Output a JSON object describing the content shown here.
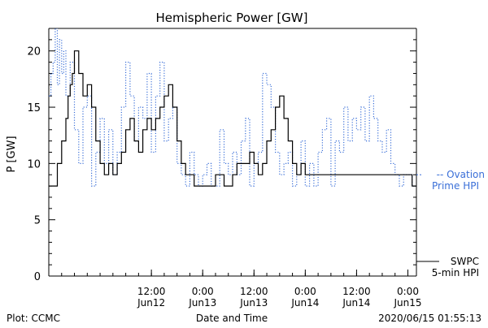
{
  "chart_data": {
    "type": "line",
    "title": "Hemispheric Power [GW]",
    "xlabel": "Date and Time",
    "ylabel": "P [GW]",
    "ylim": [
      0,
      22
    ],
    "yticks": [
      0,
      5,
      10,
      15,
      20
    ],
    "xlim": [
      "2020-06-11T12:00",
      "2020-06-15T02:00"
    ],
    "xticks": [
      {
        "time": "2020-06-12T12:00",
        "label": [
          "12:00",
          "Jun12"
        ]
      },
      {
        "time": "2020-06-13T00:00",
        "label": [
          "0:00",
          "Jun13"
        ]
      },
      {
        "time": "2020-06-13T12:00",
        "label": [
          "12:00",
          "Jun13"
        ]
      },
      {
        "time": "2020-06-14T00:00",
        "label": [
          "0:00",
          "Jun14"
        ]
      },
      {
        "time": "2020-06-14T12:00",
        "label": [
          "12:00",
          "Jun14"
        ]
      },
      {
        "time": "2020-06-15T00:00",
        "label": [
          "0:00",
          "Jun15"
        ]
      }
    ],
    "grid": false,
    "legend_position": "right",
    "series": [
      {
        "name": "SWPC 5-min HPI",
        "legend_label": [
          "SWPC",
          "5-min HPI"
        ],
        "color": "#000000",
        "style": "solid",
        "step": true,
        "x": [
          "2020-06-11T12:00",
          "2020-06-11T13:30",
          "2020-06-11T14:00",
          "2020-06-11T15:00",
          "2020-06-11T16:00",
          "2020-06-11T16:30",
          "2020-06-11T17:00",
          "2020-06-11T17:30",
          "2020-06-11T18:00",
          "2020-06-11T19:00",
          "2020-06-11T20:00",
          "2020-06-11T21:00",
          "2020-06-11T22:00",
          "2020-06-11T23:00",
          "2020-06-12T00:00",
          "2020-06-12T01:00",
          "2020-06-12T02:00",
          "2020-06-12T03:00",
          "2020-06-12T04:00",
          "2020-06-12T05:00",
          "2020-06-12T06:00",
          "2020-06-12T07:00",
          "2020-06-12T08:00",
          "2020-06-12T09:00",
          "2020-06-12T10:00",
          "2020-06-12T11:00",
          "2020-06-12T12:00",
          "2020-06-12T13:00",
          "2020-06-12T14:00",
          "2020-06-12T15:00",
          "2020-06-12T16:00",
          "2020-06-12T17:00",
          "2020-06-12T18:00",
          "2020-06-12T19:00",
          "2020-06-12T20:00",
          "2020-06-12T21:00",
          "2020-06-12T22:00",
          "2020-06-12T23:00",
          "2020-06-13T00:00",
          "2020-06-13T01:00",
          "2020-06-13T02:00",
          "2020-06-13T03:00",
          "2020-06-13T04:00",
          "2020-06-13T05:00",
          "2020-06-13T06:00",
          "2020-06-13T07:00",
          "2020-06-13T08:00",
          "2020-06-13T09:00",
          "2020-06-13T10:00",
          "2020-06-13T11:00",
          "2020-06-13T12:00",
          "2020-06-13T13:00",
          "2020-06-13T14:00",
          "2020-06-13T15:00",
          "2020-06-13T16:00",
          "2020-06-13T17:00",
          "2020-06-13T18:00",
          "2020-06-13T19:00",
          "2020-06-13T20:00",
          "2020-06-13T21:00",
          "2020-06-13T22:00",
          "2020-06-13T23:00",
          "2020-06-14T00:00",
          "2020-06-14T01:00",
          "2020-06-14T02:00",
          "2020-06-14T03:00",
          "2020-06-14T04:00",
          "2020-06-14T05:00",
          "2020-06-14T06:00",
          "2020-06-14T07:00",
          "2020-06-14T08:00",
          "2020-06-14T09:00",
          "2020-06-14T10:00",
          "2020-06-14T11:00",
          "2020-06-14T12:00",
          "2020-06-14T13:00",
          "2020-06-14T14:00",
          "2020-06-14T15:00",
          "2020-06-14T16:00",
          "2020-06-14T17:00",
          "2020-06-14T18:00",
          "2020-06-14T19:00",
          "2020-06-14T20:00",
          "2020-06-14T21:00",
          "2020-06-14T22:00",
          "2020-06-14T23:00",
          "2020-06-15T00:00",
          "2020-06-15T01:00",
          "2020-06-15T02:00"
        ],
        "y": [
          8,
          8,
          10,
          12,
          14,
          16,
          17,
          18,
          20,
          18,
          16,
          17,
          15,
          12,
          10,
          9,
          10,
          9,
          10,
          11,
          13,
          14,
          12,
          11,
          13,
          14,
          13,
          14,
          15,
          16,
          17,
          15,
          12,
          10,
          9,
          9,
          8,
          8,
          8,
          8,
          8,
          9,
          9,
          8,
          8,
          9,
          10,
          10,
          10,
          11,
          10,
          9,
          10,
          12,
          13,
          15,
          16,
          14,
          12,
          10,
          9,
          10,
          9,
          9,
          9,
          9,
          9,
          9,
          9,
          9,
          9,
          9,
          9,
          9,
          9,
          9,
          9,
          9,
          9,
          9,
          9,
          9,
          9,
          9,
          9,
          9,
          9,
          8,
          8
        ]
      },
      {
        "name": "Ovation Prime HPI",
        "legend_label": [
          "-- Ovation",
          "Prime HPI"
        ],
        "color": "#3a6fd8",
        "style": "dotted",
        "step": true,
        "x": [
          "2020-06-11T12:00",
          "2020-06-11T12:30",
          "2020-06-11T13:00",
          "2020-06-11T13:30",
          "2020-06-11T14:00",
          "2020-06-11T14:30",
          "2020-06-11T15:00",
          "2020-06-11T15:30",
          "2020-06-11T16:00",
          "2020-06-11T17:00",
          "2020-06-11T18:00",
          "2020-06-11T19:00",
          "2020-06-11T20:00",
          "2020-06-11T21:00",
          "2020-06-11T22:00",
          "2020-06-11T23:00",
          "2020-06-12T00:00",
          "2020-06-12T01:00",
          "2020-06-12T02:00",
          "2020-06-12T03:00",
          "2020-06-12T04:00",
          "2020-06-12T05:00",
          "2020-06-12T06:00",
          "2020-06-12T07:00",
          "2020-06-12T08:00",
          "2020-06-12T09:00",
          "2020-06-12T10:00",
          "2020-06-12T11:00",
          "2020-06-12T12:00",
          "2020-06-12T13:00",
          "2020-06-12T14:00",
          "2020-06-12T15:00",
          "2020-06-12T16:00",
          "2020-06-12T17:00",
          "2020-06-12T18:00",
          "2020-06-12T19:00",
          "2020-06-12T20:00",
          "2020-06-12T21:00",
          "2020-06-12T22:00",
          "2020-06-12T23:00",
          "2020-06-13T00:00",
          "2020-06-13T01:00",
          "2020-06-13T02:00",
          "2020-06-13T03:00",
          "2020-06-13T04:00",
          "2020-06-13T05:00",
          "2020-06-13T06:00",
          "2020-06-13T07:00",
          "2020-06-13T08:00",
          "2020-06-13T09:00",
          "2020-06-13T10:00",
          "2020-06-13T11:00",
          "2020-06-13T12:00",
          "2020-06-13T13:00",
          "2020-06-13T14:00",
          "2020-06-13T15:00",
          "2020-06-13T16:00",
          "2020-06-13T17:00",
          "2020-06-13T18:00",
          "2020-06-13T19:00",
          "2020-06-13T20:00",
          "2020-06-13T21:00",
          "2020-06-13T22:00",
          "2020-06-13T23:00",
          "2020-06-14T00:00",
          "2020-06-14T01:00",
          "2020-06-14T02:00",
          "2020-06-14T03:00",
          "2020-06-14T04:00",
          "2020-06-14T05:00",
          "2020-06-14T06:00",
          "2020-06-14T07:00",
          "2020-06-14T08:00",
          "2020-06-14T09:00",
          "2020-06-14T10:00",
          "2020-06-14T11:00",
          "2020-06-14T12:00",
          "2020-06-14T13:00",
          "2020-06-14T14:00",
          "2020-06-14T15:00",
          "2020-06-14T16:00",
          "2020-06-14T17:00",
          "2020-06-14T18:00",
          "2020-06-14T19:00",
          "2020-06-14T20:00",
          "2020-06-14T21:00",
          "2020-06-14T22:00",
          "2020-06-14T23:00",
          "2020-06-15T00:00",
          "2020-06-15T01:00",
          "2020-06-15T02:00"
        ],
        "y": [
          16,
          18,
          19,
          22,
          17,
          21,
          18,
          20,
          16,
          19,
          13,
          10,
          15,
          16,
          8,
          11,
          14,
          10,
          13,
          9,
          11,
          15,
          19,
          16,
          12,
          15,
          14,
          18,
          11,
          16,
          19,
          12,
          14,
          15,
          10,
          9,
          8,
          11,
          9,
          8,
          9,
          10,
          8,
          8,
          13,
          10,
          9,
          11,
          9,
          12,
          14,
          8,
          10,
          11,
          18,
          17,
          15,
          11,
          9,
          10,
          11,
          8,
          9,
          12,
          8,
          10,
          8,
          11,
          13,
          14,
          8,
          12,
          11,
          15,
          12,
          14,
          13,
          15,
          12,
          16,
          14,
          12,
          11,
          13,
          10,
          9,
          8,
          9,
          9,
          8,
          8
        ]
      }
    ]
  },
  "footer": {
    "left": "Plot: CCMC",
    "center": "Date and Time",
    "right": "2020/06/15 01:55:13"
  }
}
